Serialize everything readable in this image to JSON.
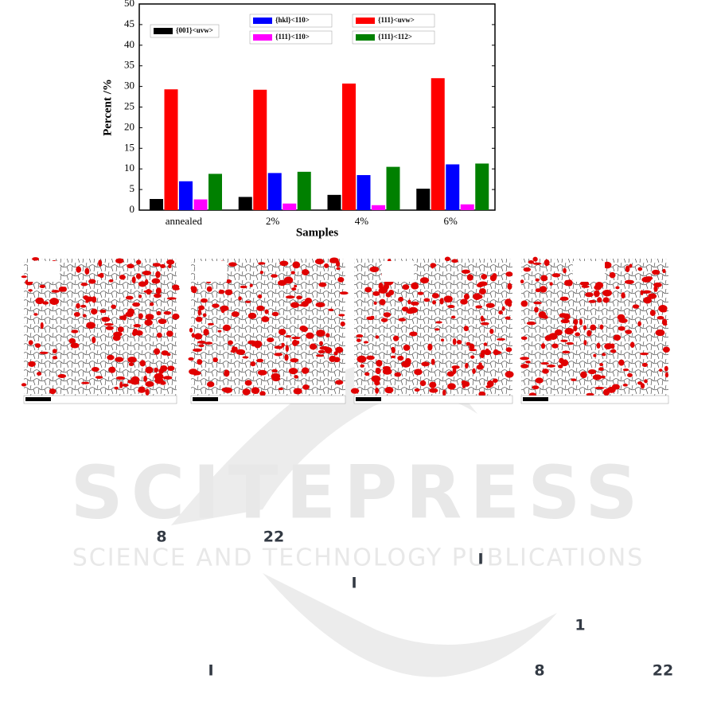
{
  "chart_data": {
    "type": "bar",
    "xlabel": "Samples",
    "ylabel": "Percent /%",
    "categories": [
      "annealed",
      "2%",
      "4%",
      "6%"
    ],
    "series": [
      {
        "name": "{001}<uvw>",
        "color": "#000000",
        "values": [
          2.7,
          3.2,
          3.7,
          5.2
        ]
      },
      {
        "name": "{111}<uvw>",
        "color": "#ff0000",
        "values": [
          29.3,
          29.2,
          30.7,
          32.0
        ]
      },
      {
        "name": "{hkl}<110>",
        "color": "#0000ff",
        "values": [
          7.0,
          9.0,
          8.5,
          11.1
        ]
      },
      {
        "name": "{111}<110>",
        "color": "#ff00ff",
        "values": [
          2.6,
          1.6,
          1.2,
          1.4
        ]
      },
      {
        "name": "{111}<112>",
        "color": "#008000",
        "values": [
          8.8,
          9.3,
          10.5,
          11.3
        ]
      }
    ],
    "ylim": [
      0,
      50
    ],
    "yticks": [
      0,
      5,
      10,
      15,
      20,
      25,
      30,
      35,
      40,
      45,
      50
    ],
    "grid": false
  },
  "watermark": {
    "title": "SCITEPRESS",
    "subtitle": "SCIENCE AND TECHNOLOGY PUBLICATIONS"
  },
  "fragments": [
    "8",
    "22",
    "I",
    "I",
    "1",
    "I",
    "8",
    "22"
  ]
}
